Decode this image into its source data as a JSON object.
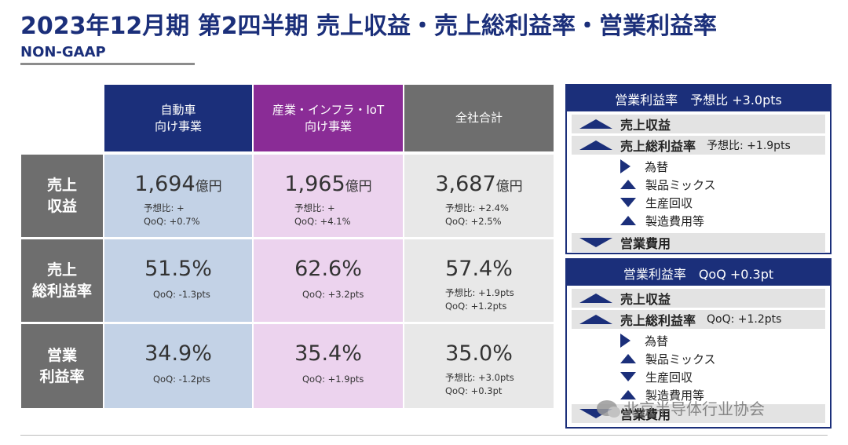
{
  "header": {
    "title": "2023年12月期 第2四半期 売上収益・売上総利益率・営業利益率",
    "subtitle": "NON-GAAP"
  },
  "table": {
    "columns": [
      {
        "label": "自動車\n向け事業",
        "color": "#1b2f7a"
      },
      {
        "label": "産業・インフラ・IoT\n向け事業",
        "color": "#8a2c96"
      },
      {
        "label": "全社合計",
        "color": "#6e6e6e"
      }
    ],
    "rows": [
      {
        "label": "売上\n収益",
        "cells": [
          {
            "value": "1,694",
            "unit": "億円",
            "note": "予想比: +\n QoQ: +0.7%"
          },
          {
            "value": "1,965",
            "unit": "億円",
            "note": "予想比: +\n QoQ: +4.1%"
          },
          {
            "value": "3,687",
            "unit": "億円",
            "note": "予想比: +2.4%\n QoQ: +2.5%"
          }
        ]
      },
      {
        "label": "売上\n総利益率",
        "cells": [
          {
            "value": "51.5%",
            "unit": "",
            "note": "QoQ: -1.3pts"
          },
          {
            "value": "62.6%",
            "unit": "",
            "note": "QoQ: +3.2pts"
          },
          {
            "value": "57.4%",
            "unit": "",
            "note": "予想比: +1.9pts\n QoQ: +1.2pts"
          }
        ]
      },
      {
        "label": "営業\n利益率",
        "cells": [
          {
            "value": "34.9%",
            "unit": "",
            "note": "QoQ: -1.2pts"
          },
          {
            "value": "35.4%",
            "unit": "",
            "note": "QoQ: +1.9pts"
          },
          {
            "value": "35.0%",
            "unit": "",
            "note": "予想比: +3.0pts\n QoQ: +0.3pt"
          }
        ]
      }
    ]
  },
  "panel_forecast": {
    "title": "営業利益率　予想比 +3.0pts",
    "revenue": "売上収益",
    "gross_margin": "売上総利益率",
    "gross_margin_value": "予想比: +1.9pts",
    "items": [
      "為替",
      "製品ミックス",
      "生産回収",
      "製造費用等"
    ],
    "opex": "営業費用"
  },
  "panel_qoq": {
    "title": "営業利益率　QoQ +0.3pt",
    "revenue": "売上収益",
    "gross_margin": "売上総利益率",
    "gross_margin_value": "QoQ: +1.2pts",
    "items": [
      "為替",
      "製品ミックス",
      "生産回収",
      "製造費用等"
    ],
    "opex": "営業費用"
  },
  "watermark": "北京半导体行业协会"
}
